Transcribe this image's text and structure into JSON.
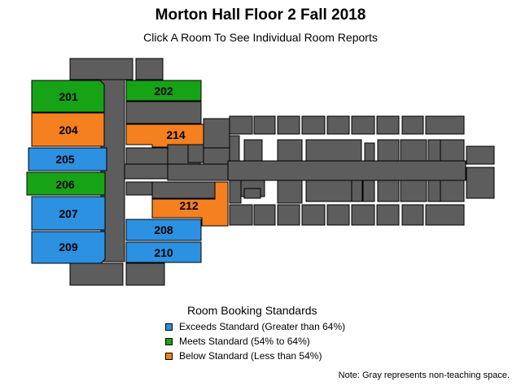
{
  "title": "Morton Hall Floor 2 Fall 2018",
  "subtitle": "Click A Room To See Individual Room Reports",
  "colors": {
    "exceeds": "#2b91e0",
    "meets": "#16a316",
    "below": "#f4801f",
    "non_teaching": "#5d5d5d"
  },
  "rooms": [
    {
      "number": "201",
      "status": "meets"
    },
    {
      "number": "202",
      "status": "meets"
    },
    {
      "number": "204",
      "status": "below"
    },
    {
      "number": "214",
      "status": "below"
    },
    {
      "number": "205",
      "status": "exceeds"
    },
    {
      "number": "206",
      "status": "meets"
    },
    {
      "number": "207",
      "status": "exceeds"
    },
    {
      "number": "212",
      "status": "below"
    },
    {
      "number": "208",
      "status": "exceeds"
    },
    {
      "number": "209",
      "status": "exceeds"
    },
    {
      "number": "210",
      "status": "exceeds"
    }
  ],
  "legend": {
    "title": "Room Booking Standards",
    "items": [
      {
        "label": "Exceeds Standard (Greater than 64%)",
        "status": "exceeds"
      },
      {
        "label": "Meets Standard (54% to 64%)",
        "status": "meets"
      },
      {
        "label": "Below Standard (Less than 54%)",
        "status": "below"
      }
    ]
  },
  "note": "Note: Gray represents non-teaching space."
}
